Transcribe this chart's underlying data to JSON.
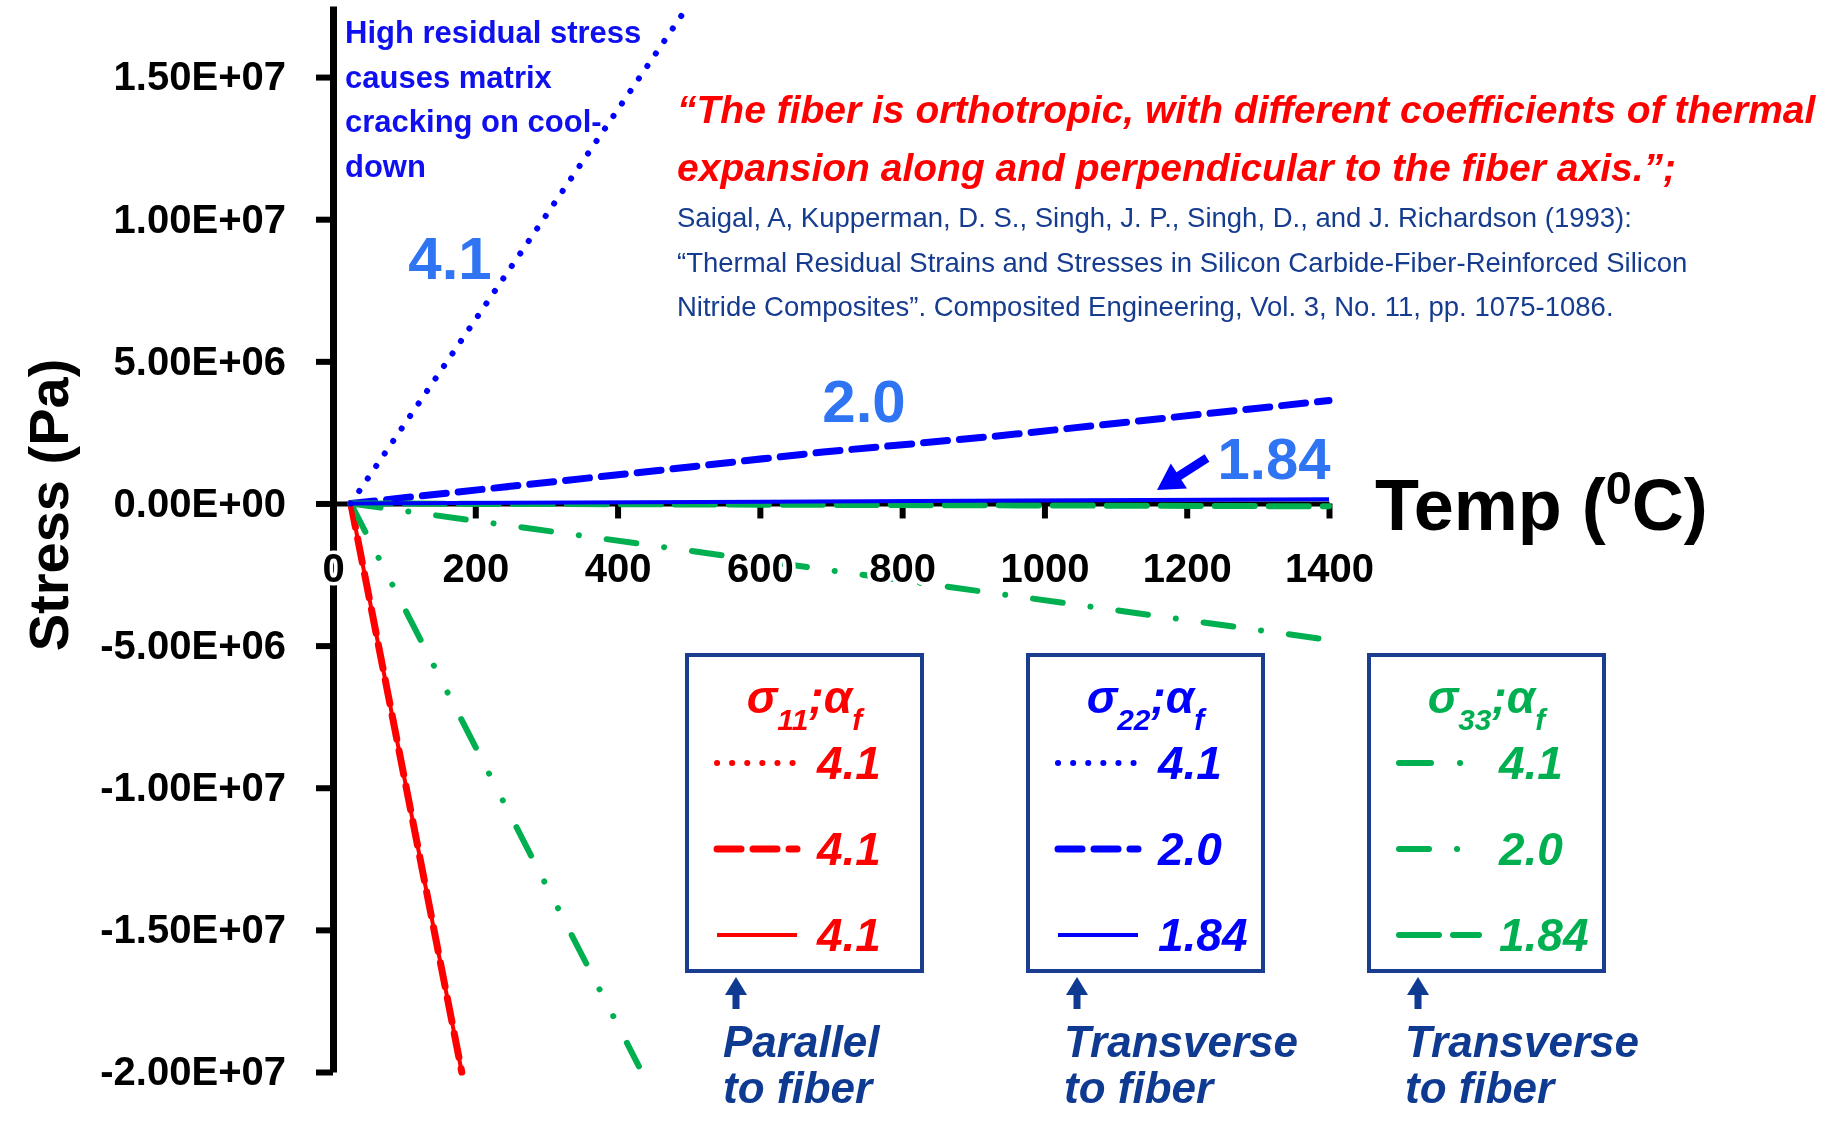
{
  "chart_data": {
    "type": "line",
    "xlabel": "Temp ($^{0}$C)",
    "ylabel": "Stress (Pa)",
    "xlim": [
      0,
      1400
    ],
    "xticks": [
      0,
      200,
      400,
      600,
      800,
      1000,
      1200,
      1400
    ],
    "ylim": [
      -20000000,
      17500000
    ],
    "yticks": [
      {
        "value": -20000000,
        "label": "-2.00E+07"
      },
      {
        "value": -15000000,
        "label": "-1.50E+07"
      },
      {
        "value": -10000000,
        "label": "-1.00E+07"
      },
      {
        "value": -5000000,
        "label": "-5.00E+06"
      },
      {
        "value": 0,
        "label": "0.00E+00"
      },
      {
        "value": 5000000,
        "label": "5.00E+06"
      },
      {
        "value": 10000000,
        "label": "1.00E+07"
      },
      {
        "value": 15000000,
        "label": "1.50E+07"
      }
    ],
    "legend": "bottom right",
    "series": [
      {
        "name": "4.1",
        "color": "#ff0000",
        "line_style": "dotted",
        "values": [
          null,
          null
        ]
      },
      {
        "name": "4.1",
        "color": "#ff0000",
        "line_style": "dashed",
        "x": [
          25,
          181
        ],
        "values": [
          0,
          -20000000
        ]
      },
      {
        "name": "4.1",
        "color": "#ff0000",
        "line_style": "solid",
        "x": [
          25,
          181
        ],
        "values": [
          0,
          -20000000
        ]
      },
      {
        "name": "4.1",
        "color": "#0000ff",
        "line_style": "dotted",
        "x": [
          25,
          499
        ],
        "values": [
          0,
          17500000
        ]
      },
      {
        "name": "2.0",
        "color": "#0000ff",
        "line_style": "dashed",
        "x": [
          25,
          457,
          689,
          937,
          1400
        ],
        "values": [
          0,
          1160000,
          1810000,
          2380000,
          3620000
        ]
      },
      {
        "name": "1.84",
        "color": "#0000ff",
        "line_style": "solid",
        "x": [
          25,
          1400
        ],
        "values": [
          0,
          150000
        ]
      },
      {
        "name": "4.1",
        "color": "#00b050",
        "line_style": "dashdotdot",
        "x": [
          25,
          430
        ],
        "values": [
          0,
          -19800000
        ]
      },
      {
        "name": "2.0",
        "color": "#00b050",
        "line_style": "dashdot",
        "x": [
          25,
          1400
        ],
        "values": [
          0,
          -4800000
        ]
      },
      {
        "name": "1.84",
        "color": "#00b050",
        "line_style": "longdash",
        "x": [
          25,
          1400
        ],
        "values": [
          0,
          -100000
        ]
      }
    ],
    "annotations": [
      "High residual stress causes matrix cracking on cool-down",
      "“The fiber is orthotropic, with different coefficients of thermal expansion along and perpendicular to the fiber axis.”;",
      "Saigal, A, Kupperman, D. S., Singh, J. P., Singh, D., and J. Richardson (1993):\n“Thermal Residual Strains and Stresses in Silicon Carbide-Fiber-Reinforced Silicon Nitride Composites”. Composited Engineering, Vol. 3, No. 11, pp. 1075-1086.",
      "4.1",
      "2.0",
      "1.84",
      "σ$_{11}$;α$_{f}$",
      "σ$_{22}$;α$_{f}$",
      "σ$_{33}$;α$_{f}$",
      "Parallel to fiber",
      "Transverse to fiber",
      "Transverse to fiber"
    ]
  }
}
